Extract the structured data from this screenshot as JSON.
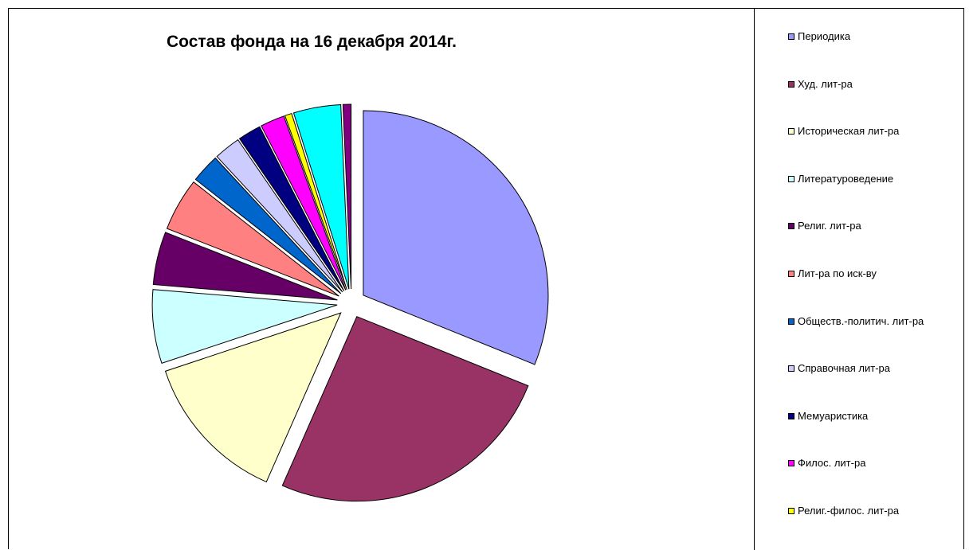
{
  "chart_data": {
    "type": "pie",
    "title": "Состав фонда на 16 декабря 2014г.",
    "legend_position": "right",
    "series": [
      {
        "name": "Периодика",
        "value": 30.9,
        "color": "#9999ff"
      },
      {
        "name": "Худ. лит-ра",
        "value": 25.3,
        "color": "#993366"
      },
      {
        "name": "Историческая лит-ра",
        "value": 13.2,
        "color": "#ffffcc"
      },
      {
        "name": "Литературоведение",
        "value": 6.4,
        "color": "#ccffff"
      },
      {
        "name": "Религ. лит-ра",
        "value": 4.6,
        "color": "#660066"
      },
      {
        "name": "Лит-ра по иск-ву",
        "value": 4.6,
        "color": "#ff8080"
      },
      {
        "name": "Обществ.-политич. лит-ра",
        "value": 2.5,
        "color": "#0066cc"
      },
      {
        "name": "Справочная лит-ра",
        "value": 2.3,
        "color": "#ccccff"
      },
      {
        "name": "Мемуаристика",
        "value": 2.0,
        "color": "#000080"
      },
      {
        "name": "Филос. лит-ра",
        "value": 2.1,
        "color": "#ff00ff"
      },
      {
        "name": "Религ.-филос. лит-ра",
        "value": 0.6,
        "color": "#ffff00"
      },
      {
        "name": "",
        "value": 4.1,
        "color": "#00ffff"
      },
      {
        "name": "",
        "value": 0.7,
        "color": "#800080"
      }
    ]
  }
}
